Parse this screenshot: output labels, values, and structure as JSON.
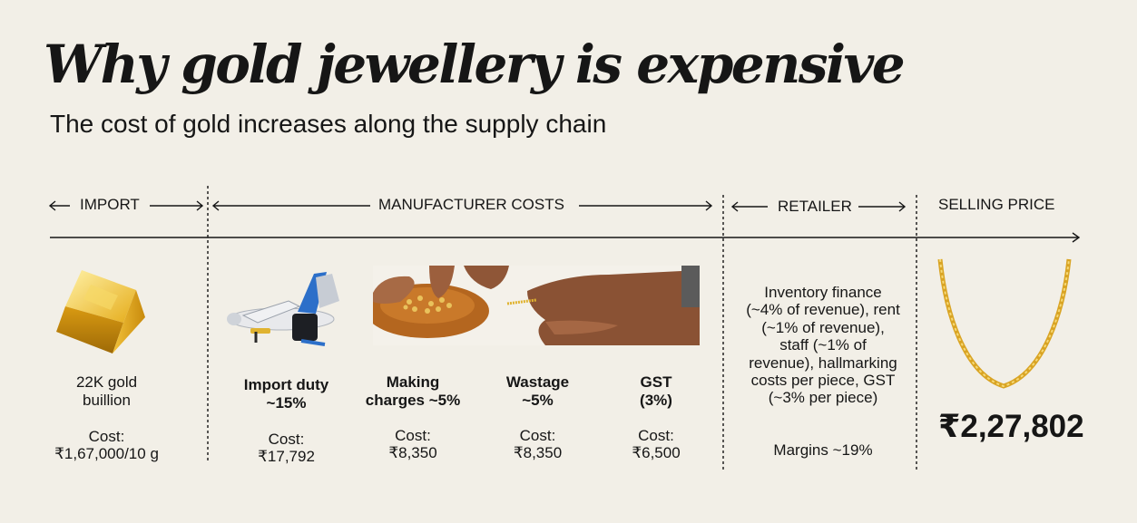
{
  "header": {
    "title": "Why gold jewellery is expensive",
    "subtitle": "The cost of gold increases along the supply chain"
  },
  "stages": {
    "import": "IMPORT",
    "manufacturer": "MANUFACTURER COSTS",
    "retailer": "RETAILER",
    "selling": "SELLING PRICE"
  },
  "columns": {
    "bullion": {
      "name": "22K gold buillion",
      "cost_label": "Cost:",
      "cost": "₹1,67,000/10 g"
    },
    "import_duty": {
      "name": "Import duty ~15%",
      "cost_label": "Cost:",
      "cost": "₹17,792"
    },
    "making": {
      "name": "Making charges ~5%",
      "cost_label": "Cost:",
      "cost": "₹8,350"
    },
    "wastage": {
      "name": "Wastage ~5%",
      "cost_label": "Cost:",
      "cost": "₹8,350"
    },
    "gst": {
      "name": "GST (3%)",
      "cost_label": "Cost:",
      "cost": "₹6,500"
    },
    "retailer": {
      "description": "Inventory finance (~4% of revenue), rent (~1% of revenue), staff (~1% of revenue), hallmarking costs per piece, GST (~3% per piece)",
      "margins": "Margins ~19%"
    },
    "selling": {
      "price": "₹2,27,802"
    }
  },
  "icons": [
    "gold-bar-icon",
    "airplane-icon",
    "hands-gold-icon",
    "gold-chain-icon"
  ],
  "colors": {
    "background": "#f2efe7",
    "text": "#161616",
    "gold": "#e0b330"
  }
}
